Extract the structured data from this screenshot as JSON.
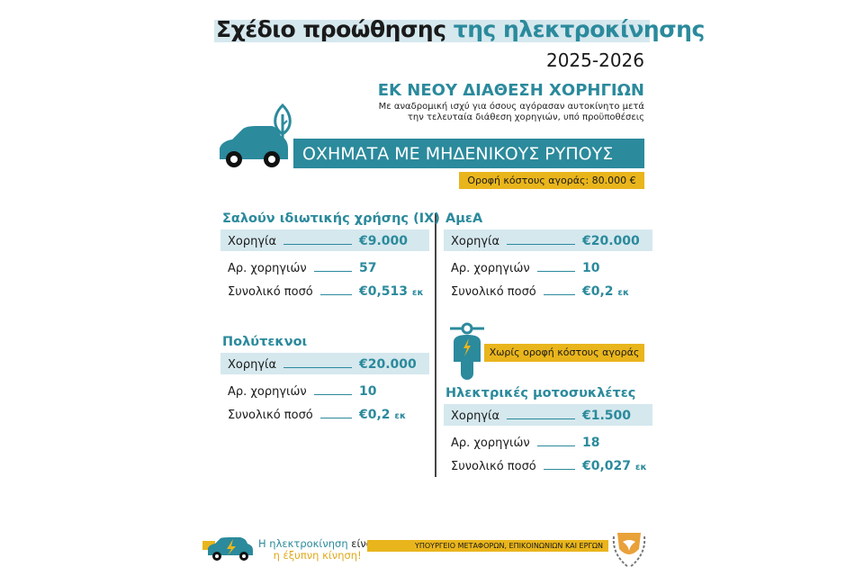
{
  "header": {
    "title_black": "Σχέδιο προώθησης",
    "title_teal": "της ηλεκτροκίνησης",
    "years": "2025-2026",
    "kicker": "ΕΚ ΝΕΟΥ ΔΙΑΘΕΣΗ ΧΟΡΗΓΙΩΝ",
    "subtitle_line1": "Με αναδρομική ισχύ για όσους αγόρασαν αυτοκίνητο μετά",
    "subtitle_line2": "την τελευταία διάθεση χορηγιών, υπό προϋποθέσεις"
  },
  "banner": {
    "label": "ΟΧΗΜΑΤΑ ΜΕ ΜΗΔΕΝΙΚΟΥΣ ΡΥΠΟΥΣ",
    "price_cap": "Οροφή κόστους αγοράς: 80.000 €",
    "icon": "car-with-tree-icon"
  },
  "labels": {
    "grant": "Χορηγία",
    "count": "Αρ. χορηγιών",
    "total": "Συνολικό ποσό",
    "unit": "εκ"
  },
  "groups": [
    {
      "title": "Σαλούν ιδιωτικής χρήσης (ΙΧ)",
      "grant": "€9.000",
      "count": "57",
      "total": "€0,513"
    },
    {
      "title": "Πολύτεκνοι",
      "grant": "€20.000",
      "count": "10",
      "total": "€0,2"
    },
    {
      "title": "ΑμεΑ",
      "grant": "€20.000",
      "count": "10",
      "total": "€0,2"
    },
    {
      "title": "Ηλεκτρικές μοτοσυκλέτες",
      "grant": "€1.500",
      "count": "18",
      "total": "€0,027"
    }
  ],
  "motorcycle_note": "Χωρίς οροφή κόστους αγοράς",
  "footer": {
    "slogan_teal": "Η ηλεκτροκίνηση",
    "slogan_black": "είναι",
    "slogan_line2": "η έξυπνη κίνηση!",
    "ministry": "ΥΠΟΥΡΓΕΙΟ ΜΕΤΑΦΟΡΩΝ, ΕΠΙΚΟΙΝΩΝΙΩΝ ΚΑΙ ΕΡΓΩΝ"
  },
  "colors": {
    "teal": "#2b8a9c",
    "yellow": "#e9b51c",
    "light_blue": "#d5e8ee"
  }
}
